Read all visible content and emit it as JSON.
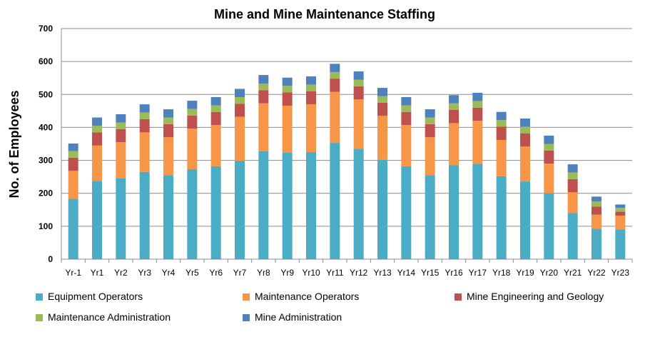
{
  "chart_data": {
    "type": "bar",
    "stacked": true,
    "title": "Mine and Mine Maintenance Staffing",
    "xlabel": "",
    "ylabel": "No. of Employees",
    "ylim": [
      0,
      700
    ],
    "yticks": [
      0,
      100,
      200,
      300,
      400,
      500,
      600,
      700
    ],
    "grid": true,
    "legend_position": "bottom",
    "categories": [
      "Yr-1",
      "Yr1",
      "Yr2",
      "Yr3",
      "Yr4",
      "Yr5",
      "Yr6",
      "Yr7",
      "Yr8",
      "Yr9",
      "Yr10",
      "Yr11",
      "Yr12",
      "Yr13",
      "Yr14",
      "Yr15",
      "Yr16",
      "Yr17",
      "Yr18",
      "Yr19",
      "Yr20",
      "Yr21",
      "Yr22",
      "Yr23"
    ],
    "series": [
      {
        "name": "Equipment Operators",
        "color": "#4BACC6",
        "values": [
          183,
          238,
          245,
          265,
          255,
          273,
          282,
          299,
          328,
          323,
          325,
          353,
          335,
          302,
          282,
          255,
          285,
          290,
          252,
          236,
          200,
          140,
          92,
          90
        ]
      },
      {
        "name": "Maintenance Operators",
        "color": "#F79646",
        "values": [
          85,
          107,
          110,
          120,
          115,
          123,
          125,
          133,
          145,
          143,
          145,
          155,
          150,
          133,
          125,
          115,
          128,
          130,
          110,
          106,
          90,
          63,
          43,
          42
        ]
      },
      {
        "name": "Mine Engineering and Geology",
        "color": "#C0504D",
        "values": [
          40,
          40,
          40,
          40,
          40,
          40,
          40,
          40,
          40,
          40,
          40,
          40,
          40,
          40,
          40,
          40,
          40,
          40,
          40,
          40,
          40,
          40,
          25,
          12
        ]
      },
      {
        "name": "Maintenance Administration",
        "color": "#9BBB59",
        "values": [
          20,
          20,
          20,
          20,
          20,
          20,
          20,
          20,
          20,
          20,
          20,
          20,
          20,
          20,
          20,
          20,
          20,
          20,
          20,
          20,
          20,
          20,
          15,
          12
        ]
      },
      {
        "name": "Mine Administration",
        "color": "#4F81BD",
        "values": [
          23,
          25,
          25,
          25,
          25,
          25,
          25,
          25,
          26,
          25,
          25,
          25,
          25,
          25,
          25,
          25,
          25,
          25,
          25,
          25,
          25,
          25,
          15,
          10
        ]
      }
    ]
  }
}
